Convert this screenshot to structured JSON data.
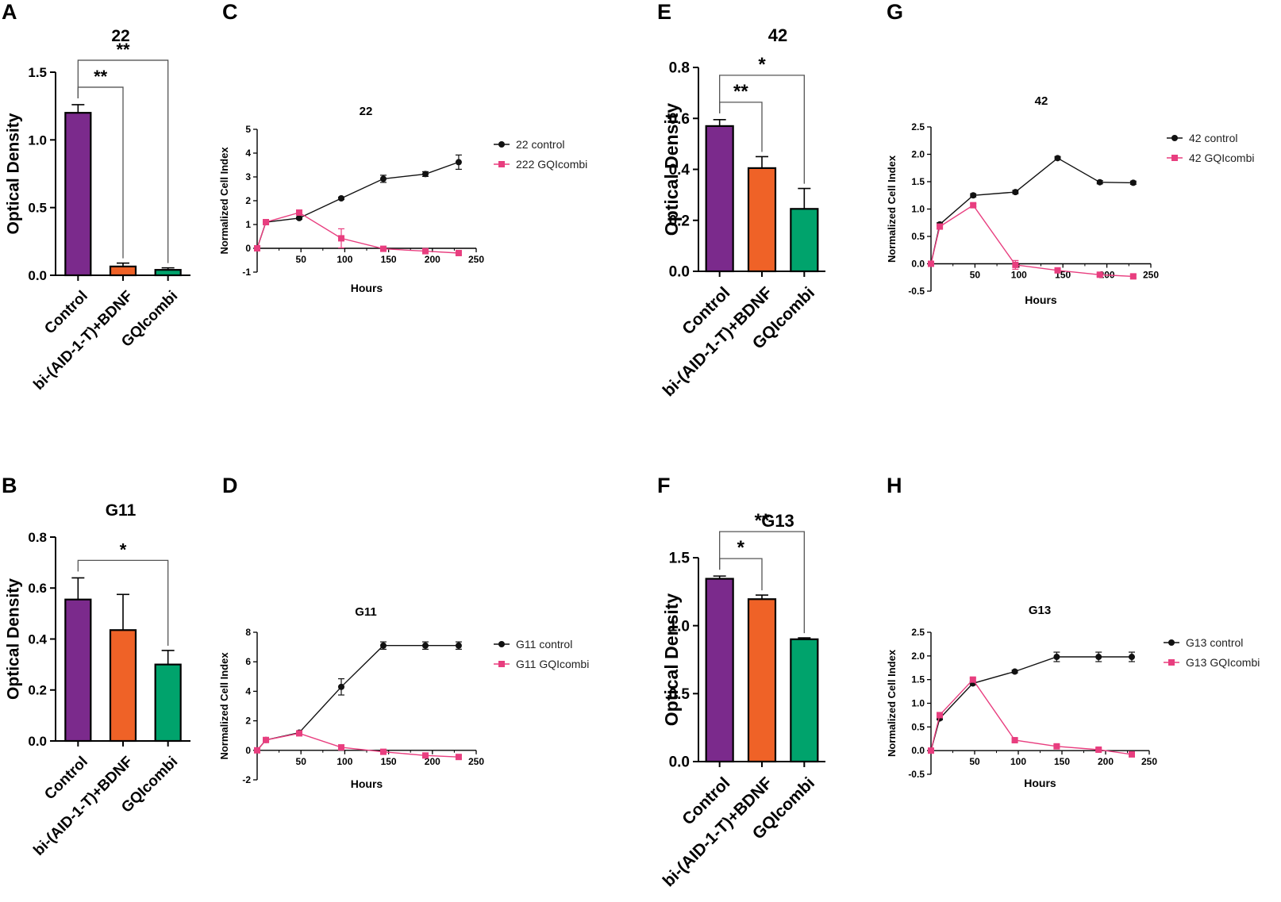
{
  "panel_labels": [
    "A",
    "B",
    "C",
    "D",
    "E",
    "F",
    "G",
    "H"
  ],
  "colors": {
    "control": "#7b2a8c",
    "bdnf": "#ef6227",
    "gqi": "#00a36c",
    "line_control": "#111111",
    "line_gqi": "#e83e7f"
  },
  "chart_data": [
    {
      "id": "A",
      "type": "bar",
      "title": "22",
      "categories": [
        "Control",
        "bi-(AID-1-T)+BDNF",
        "GQIcombi"
      ],
      "values": [
        1.2,
        0.065,
        0.04
      ],
      "errors": [
        0.06,
        0.025,
        0.015
      ],
      "ylabel": "Optical Density",
      "ylim": [
        0,
        1.5
      ],
      "yticks": [
        "0.0",
        "0.5",
        "1.0",
        "1.5"
      ],
      "significance": [
        {
          "from": 0,
          "to": 1,
          "label": "**"
        },
        {
          "from": 0,
          "to": 2,
          "label": "**"
        }
      ]
    },
    {
      "id": "B",
      "type": "bar",
      "title": "G11",
      "categories": [
        "Control",
        "bi-(AID-1-T)+BDNF",
        "GQIcombi"
      ],
      "values": [
        0.555,
        0.435,
        0.3
      ],
      "errors": [
        0.085,
        0.14,
        0.055
      ],
      "ylabel": "Optical Density",
      "ylim": [
        0,
        0.8
      ],
      "yticks": [
        "0.0",
        "0.2",
        "0.4",
        "0.6",
        "0.8"
      ],
      "significance": [
        {
          "from": 0,
          "to": 2,
          "label": "*"
        }
      ]
    },
    {
      "id": "C",
      "type": "line",
      "title": "22",
      "xlabel": "Hours",
      "ylabel": "Normalized Cell Index",
      "xlim": [
        0,
        250
      ],
      "ylim": [
        -1,
        5
      ],
      "xticks": [
        "50",
        "100",
        "150",
        "200",
        "250"
      ],
      "yticks": [
        "-1",
        "0",
        "1",
        "2",
        "3",
        "4",
        "5"
      ],
      "series": [
        {
          "name": "22 control",
          "x": [
            0,
            10,
            48,
            96,
            144,
            192,
            230
          ],
          "values": [
            0,
            1.1,
            1.27,
            2.1,
            2.92,
            3.12,
            3.62
          ],
          "errors": [
            0,
            0.05,
            0.05,
            0.05,
            0.15,
            0.1,
            0.3
          ]
        },
        {
          "name": "222 GQIcombi",
          "x": [
            0,
            10,
            48,
            96,
            144,
            192,
            230
          ],
          "values": [
            0,
            1.1,
            1.5,
            0.42,
            -0.02,
            -0.12,
            -0.2
          ],
          "errors": [
            0,
            0.05,
            0.05,
            0.4,
            0.05,
            0.05,
            0.05
          ]
        }
      ]
    },
    {
      "id": "D",
      "type": "line",
      "title": "G11",
      "xlabel": "Hours",
      "ylabel": "Normalized Cell Index",
      "xlim": [
        0,
        250
      ],
      "ylim": [
        -2,
        8
      ],
      "xticks": [
        "50",
        "100",
        "150",
        "200",
        "250"
      ],
      "yticks": [
        "-2",
        "0",
        "2",
        "4",
        "6",
        "8"
      ],
      "series": [
        {
          "name": "G11 control",
          "x": [
            0,
            10,
            48,
            96,
            144,
            192,
            230
          ],
          "values": [
            0,
            0.7,
            1.2,
            4.3,
            7.1,
            7.1,
            7.1
          ],
          "errors": [
            0,
            0.1,
            0.1,
            0.55,
            0.25,
            0.25,
            0.25
          ]
        },
        {
          "name": "G11 GQIcombi",
          "x": [
            0,
            10,
            48,
            96,
            144,
            192,
            230
          ],
          "values": [
            0,
            0.7,
            1.15,
            0.2,
            -0.1,
            -0.35,
            -0.45
          ],
          "errors": [
            0,
            0.1,
            0.1,
            0.1,
            0.1,
            0.1,
            0.1
          ]
        }
      ]
    },
    {
      "id": "E",
      "type": "bar",
      "title": "42",
      "categories": [
        "Control",
        "bi-(AID-1-T)+BDNF",
        "GQIcombi"
      ],
      "values": [
        0.57,
        0.405,
        0.245
      ],
      "errors": [
        0.025,
        0.045,
        0.08
      ],
      "ylabel": "Optical Density",
      "ylim": [
        0,
        0.8
      ],
      "yticks": [
        "0.0",
        "0.2",
        "0.4",
        "0.6",
        "0.8"
      ],
      "significance": [
        {
          "from": 0,
          "to": 1,
          "label": "**"
        },
        {
          "from": 0,
          "to": 2,
          "label": "*"
        }
      ]
    },
    {
      "id": "F",
      "type": "bar",
      "title": "G13",
      "categories": [
        "Control",
        "bi-(AID-1-T)+BDNF",
        "GQIcombi"
      ],
      "values": [
        1.345,
        1.195,
        0.9
      ],
      "errors": [
        0.02,
        0.03,
        0.01
      ],
      "ylabel": "Optical Density",
      "ylim": [
        0,
        1.5
      ],
      "yticks": [
        "0.0",
        "0.5",
        "1.0",
        "1.5"
      ],
      "significance": [
        {
          "from": 0,
          "to": 1,
          "label": "*"
        },
        {
          "from": 0,
          "to": 2,
          "label": "**"
        }
      ]
    },
    {
      "id": "G",
      "type": "line",
      "title": "42",
      "xlabel": "Hours",
      "ylabel": "Normalized Cell Index",
      "xlim": [
        0,
        250
      ],
      "ylim": [
        -0.5,
        2.5
      ],
      "xticks": [
        "50",
        "100",
        "150",
        "200",
        "250"
      ],
      "yticks": [
        "-0.5",
        "0.0",
        "0.5",
        "1.0",
        "1.5",
        "2.0",
        "2.5"
      ],
      "series": [
        {
          "name": "42 control",
          "x": [
            0,
            10,
            48,
            96,
            144,
            192,
            230
          ],
          "values": [
            0,
            0.72,
            1.25,
            1.31,
            1.93,
            1.49,
            1.48
          ],
          "errors": [
            0,
            0.03,
            0.03,
            0.03,
            0.03,
            0.03,
            0.03
          ]
        },
        {
          "name": "42 GQIcombi",
          "x": [
            0,
            10,
            48,
            96,
            144,
            192,
            230
          ],
          "values": [
            0,
            0.68,
            1.07,
            -0.02,
            -0.12,
            -0.2,
            -0.23
          ],
          "errors": [
            0,
            0.03,
            0.03,
            0.08,
            0.03,
            0.03,
            0.03
          ]
        }
      ]
    },
    {
      "id": "H",
      "type": "line",
      "title": "G13",
      "xlabel": "Hours",
      "ylabel": "Normalized Cell Index",
      "xlim": [
        0,
        250
      ],
      "ylim": [
        -0.5,
        2.5
      ],
      "xticks": [
        "50",
        "100",
        "150",
        "200",
        "250"
      ],
      "yticks": [
        "-0.5",
        "0.0",
        "0.5",
        "1.0",
        "1.5",
        "2.0",
        "2.5"
      ],
      "series": [
        {
          "name": "G13 control",
          "x": [
            0,
            10,
            48,
            96,
            144,
            192,
            230
          ],
          "values": [
            0,
            0.68,
            1.42,
            1.67,
            1.98,
            1.98,
            1.98
          ],
          "errors": [
            0,
            0.03,
            0.03,
            0.03,
            0.1,
            0.1,
            0.1
          ]
        },
        {
          "name": "G13 GQIcombi",
          "x": [
            0,
            10,
            48,
            96,
            144,
            192,
            230
          ],
          "values": [
            0,
            0.75,
            1.5,
            0.22,
            0.09,
            0.02,
            -0.08
          ],
          "errors": [
            0,
            0.03,
            0.03,
            0.03,
            0.03,
            0.03,
            0.03
          ]
        }
      ]
    }
  ]
}
